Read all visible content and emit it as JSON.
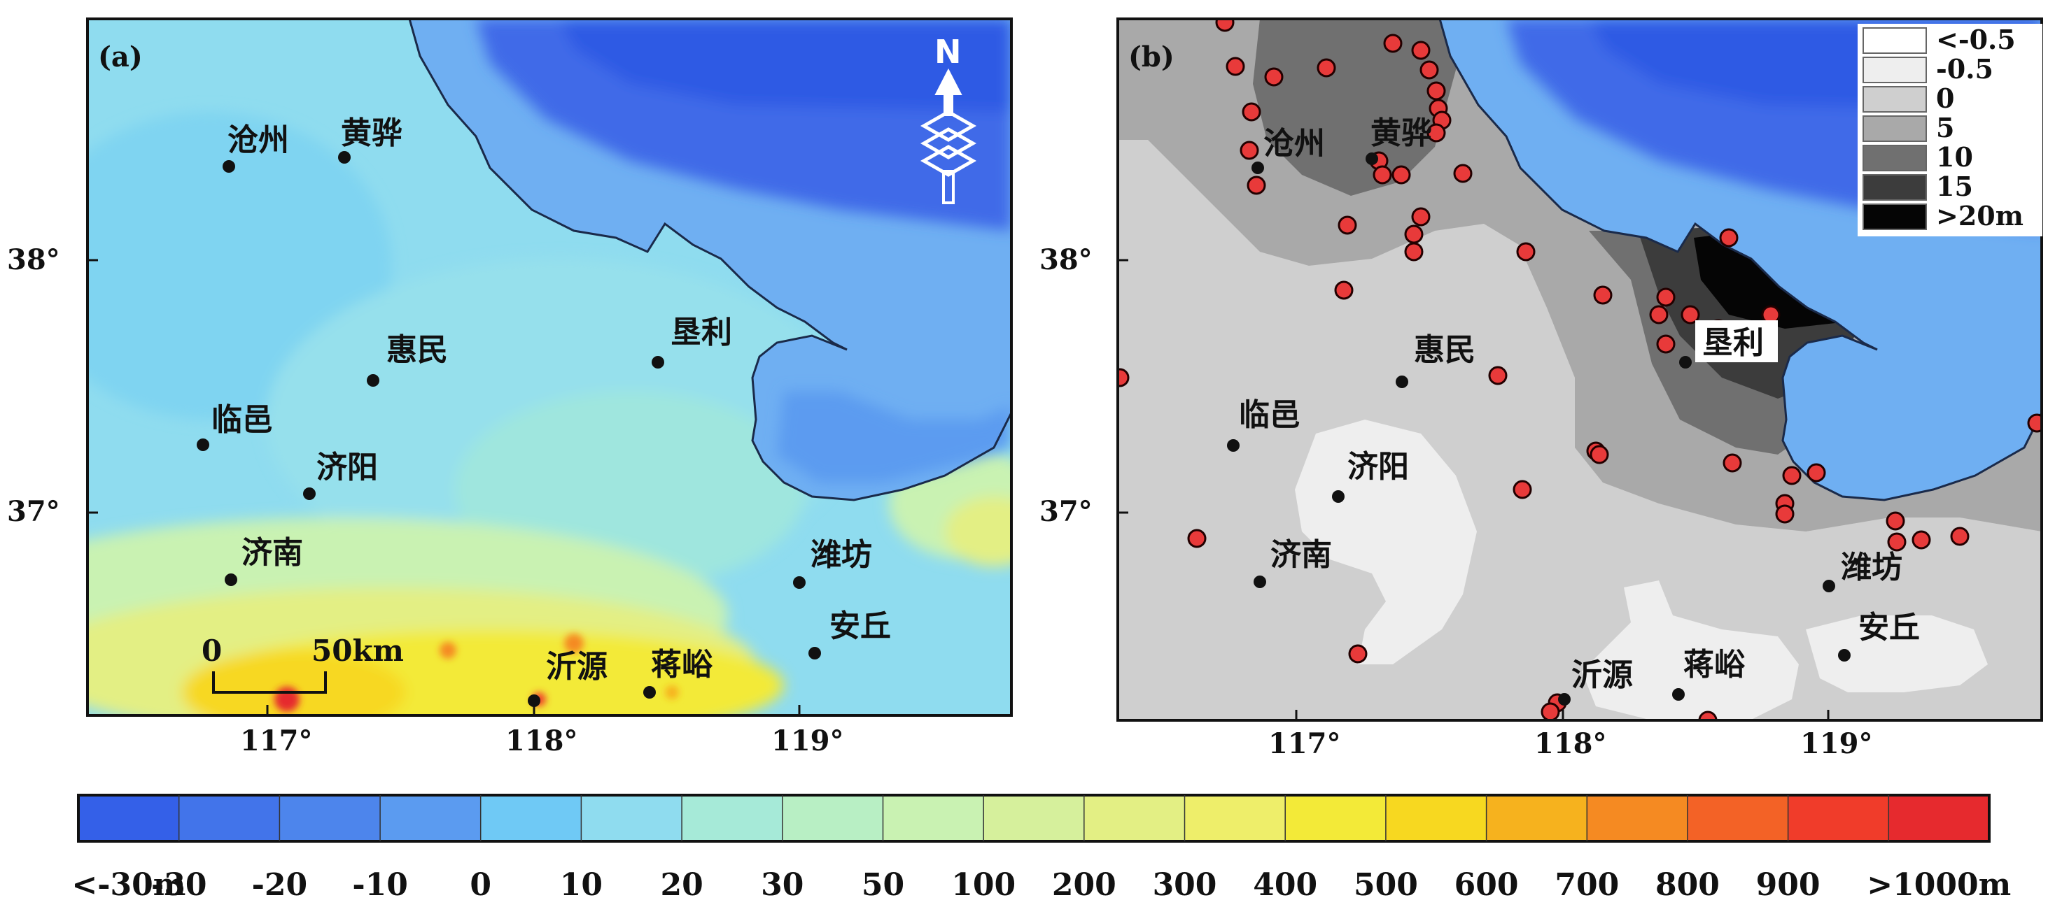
{
  "panels": [
    {
      "tag": "(a)",
      "scale_start": "0",
      "scale_end": "50km",
      "north_letter": "N"
    },
    {
      "tag": "(b)"
    }
  ],
  "x_ticks": [
    "117°",
    "118°",
    "119°"
  ],
  "y_ticks": [
    "38°",
    "37°"
  ],
  "cities": {
    "cangzhou": "沧州",
    "huanghua": "黄骅",
    "huimin": "惠民",
    "kenli": "垦利",
    "linyi": "临邑",
    "jiyang": "济阳",
    "jinan": "济南",
    "weifang": "潍坊",
    "anqiu": "安丘",
    "yiyuan": "沂源",
    "jiangyu": "蒋峪"
  },
  "legend_b": {
    "labels": [
      "<-0.5",
      "-0.5",
      "0",
      "5",
      "10",
      "15",
      ">20m"
    ],
    "colors": [
      "#ffffff",
      "#eeeeee",
      "#cfcfcf",
      "#a9a9a9",
      "#707070",
      "#3c3c3c",
      "#050505"
    ]
  },
  "colorbar": {
    "labels": [
      "<-30m",
      "-30",
      "-20",
      "-10",
      "0",
      "10",
      "20",
      "30",
      "50",
      "100",
      "200",
      "300",
      "400",
      "500",
      "600",
      "700",
      "800",
      "900",
      ">1000m"
    ],
    "colors": [
      "#3460e8",
      "#4274ea",
      "#4d85ec",
      "#5b9bf0",
      "#6fc9f5",
      "#8fdcef",
      "#a6ead8",
      "#b8efc4",
      "#c9f2b2",
      "#d6f09c",
      "#e3ef84",
      "#eeee6a",
      "#f3ea38",
      "#f7d820",
      "#f6b21e",
      "#f58a22",
      "#f36226",
      "#f03c2a",
      "#e62a2e"
    ]
  }
}
